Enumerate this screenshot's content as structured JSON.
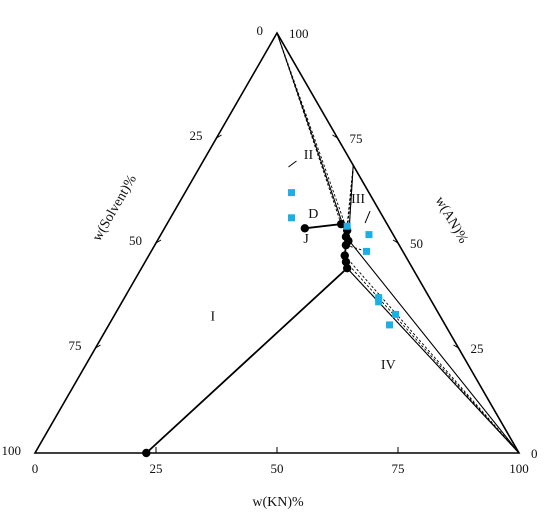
{
  "chart_data": {
    "type": "ternary-phase-diagram",
    "axes": {
      "bottom": {
        "title": "w(KN)%",
        "ticks": [
          "0",
          "25",
          "50",
          "75",
          "100"
        ]
      },
      "right": {
        "title": "w(AN)%",
        "ticks": [
          "0",
          "25",
          "50",
          "75",
          "100"
        ]
      },
      "left": {
        "title": "w(Solvent)%",
        "ticks": [
          "0",
          "25",
          "50",
          "75",
          "100"
        ]
      }
    },
    "solubility_curve": [
      {
        "kn": 23.0,
        "an": 0.0
      },
      {
        "kn": 42.5,
        "an": 44.0
      },
      {
        "kn": 41.5,
        "an": 45.5
      },
      {
        "kn": 40.5,
        "an": 47.0
      },
      {
        "kn": 39.5,
        "an": 49.5
      },
      {
        "kn": 39.5,
        "an": 50.5
      },
      {
        "kn": 38.5,
        "an": 51.5
      },
      {
        "kn": 38.0,
        "an": 53.0
      },
      {
        "kn": 36.0,
        "an": 54.5
      },
      {
        "kn": 29.0,
        "an": 53.5
      }
    ],
    "eutectic_point": {
      "kn": 39.5,
      "an": 50.5
    },
    "pure_an_vertex": {
      "kn": 0.0,
      "an": 100.0
    },
    "pure_kn_vertex": {
      "kn": 100.0,
      "an": 0.0
    },
    "an_compound": {
      "kn": 31.5,
      "an": 68.5
    },
    "tie_lines": [
      {
        "from": {
          "kn": 38.0,
          "an": 53.0
        },
        "to": "an"
      },
      {
        "from": {
          "kn": 36.0,
          "an": 54.5
        },
        "to": "an"
      },
      {
        "from": {
          "kn": 38.5,
          "an": 51.5
        },
        "to": "compound"
      },
      {
        "from": {
          "kn": 39.5,
          "an": 50.5
        },
        "to": "compound"
      },
      {
        "from": {
          "kn": 39.5,
          "an": 49.5
        },
        "to": "compound"
      },
      {
        "from": {
          "kn": 40.5,
          "an": 47.0
        },
        "to": "kn"
      },
      {
        "from": {
          "kn": 41.5,
          "an": 45.5
        },
        "to": "kn"
      },
      {
        "from": {
          "kn": 42.5,
          "an": 44.0
        },
        "to": "kn"
      }
    ],
    "tie_line_to_point": [
      {
        "from": {
          "kn": 39.5,
          "an": 49.5
        },
        "to": {
          "kn": 44.5,
          "an": 48.0
        }
      }
    ],
    "boundary_lines": [
      {
        "from": {
          "kn": 39.5,
          "an": 50.5
        },
        "to": "an",
        "style": "solid"
      },
      {
        "from": {
          "kn": 39.5,
          "an": 50.5
        },
        "to": "compound",
        "style": "solid"
      },
      {
        "from": {
          "kn": 42.5,
          "an": 44.0
        },
        "to": "kn",
        "style": "solid"
      },
      {
        "from": {
          "kn": 38.5,
          "an": 51.5
        },
        "to": "kn",
        "style": "solid"
      }
    ],
    "mixture_points": [
      {
        "kn": 22.0,
        "an": 62.0
      },
      {
        "kn": 25.0,
        "an": 56.0
      },
      {
        "kn": 37.5,
        "an": 54.0
      },
      {
        "kn": 43.0,
        "an": 52.0
      },
      {
        "kn": 44.5,
        "an": 48.0
      },
      {
        "kn": 52.5,
        "an": 37.0
      },
      {
        "kn": 53.0,
        "an": 36.0
      },
      {
        "kn": 58.0,
        "an": 33.0
      },
      {
        "kn": 58.0,
        "an": 30.5
      }
    ],
    "region_labels": [
      {
        "text": "I",
        "kn": 21.0,
        "an": 31.5
      },
      {
        "text": "II",
        "kn": 21.5,
        "an": 70.0
      },
      {
        "text": "III",
        "kn": 37.0,
        "an": 59.5
      },
      {
        "text": "IV",
        "kn": 63.0,
        "an": 20.0
      },
      {
        "text": "D",
        "kn": 29.5,
        "an": 56.0
      },
      {
        "text": "J",
        "kn": 31.0,
        "an": 50.0
      }
    ],
    "colors": {
      "line": "#000000",
      "point": "#000000",
      "mixture_point": "#1ab0e6",
      "text": "#111111"
    }
  }
}
